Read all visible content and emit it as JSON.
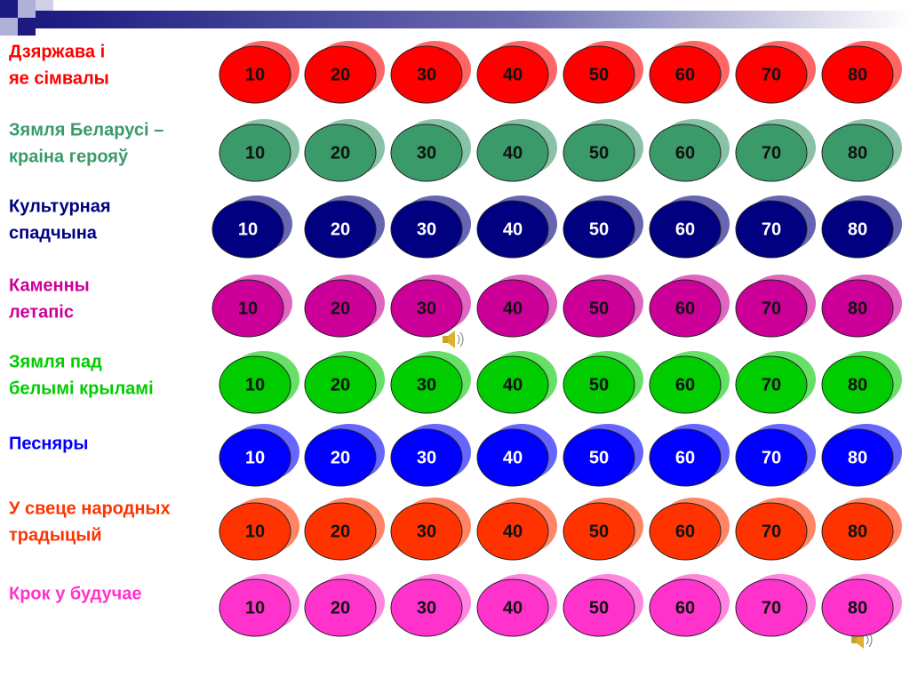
{
  "board": {
    "rows": [
      {
        "label_lines": [
          "Дзяржава і",
          "яе сімвалы"
        ],
        "color": "#ff0000",
        "values": [
          10,
          20,
          30,
          40,
          50,
          60,
          70,
          80
        ]
      },
      {
        "label_lines": [
          "Зямля Беларусі –",
          "краіна герояў"
        ],
        "color": "#3a9a6a",
        "values": [
          10,
          20,
          30,
          40,
          50,
          60,
          70,
          80
        ]
      },
      {
        "label_lines": [
          "Культурная",
          "спадчына"
        ],
        "color": "#000080",
        "values": [
          10,
          20,
          30,
          40,
          50,
          60,
          70,
          80
        ]
      },
      {
        "label_lines": [
          "Каменны",
          "летапіс"
        ],
        "color": "#cc0099",
        "values": [
          10,
          20,
          30,
          40,
          50,
          60,
          70,
          80
        ]
      },
      {
        "label_lines": [
          "Зямля пад",
          "белымі крыламі"
        ],
        "color": "#00cc00",
        "values": [
          10,
          20,
          30,
          40,
          50,
          60,
          70,
          80
        ]
      },
      {
        "label_lines": [
          "Песняры"
        ],
        "color": "#0000ff",
        "values": [
          10,
          20,
          30,
          40,
          50,
          60,
          70,
          80
        ]
      },
      {
        "label_lines": [
          "У свеце народных",
          "традыцый"
        ],
        "color": "#ff3300",
        "values": [
          10,
          20,
          30,
          40,
          50,
          60,
          70,
          80
        ]
      },
      {
        "label_lines": [
          "Крок у будучае"
        ],
        "color": "#ff33cc",
        "values": [
          10,
          20,
          30,
          40,
          50,
          60,
          70,
          80
        ]
      }
    ]
  }
}
